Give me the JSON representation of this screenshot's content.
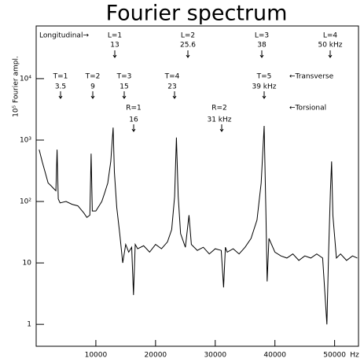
{
  "chart_data": {
    "type": "line",
    "title": "Fourier spectrum",
    "ylabel": "10⁵ Fourier ampl.",
    "xlabel": "Hz",
    "log_y": true,
    "xlim": [
      0,
      54000
    ],
    "ylim": [
      0.44,
      72000
    ],
    "xticks": [
      10000,
      20000,
      30000,
      40000,
      50000
    ],
    "yticks": [
      1,
      10,
      {
        "value": 100,
        "label": "10²"
      },
      {
        "value": 1000,
        "label": "10³"
      },
      {
        "value": 10000,
        "label": "10⁴"
      }
    ],
    "x": [
      500,
      1000,
      1500,
      2000,
      2500,
      3000,
      3300,
      3500,
      3700,
      4000,
      5000,
      6000,
      7000,
      8000,
      8500,
      9000,
      9200,
      9400,
      10000,
      11000,
      11500,
      12000,
      12500,
      12900,
      13100,
      13500,
      14000,
      14500,
      15000,
      15500,
      16000,
      16300,
      16600,
      17000,
      18000,
      19000,
      20000,
      21000,
      22000,
      22700,
      23200,
      23500,
      23800,
      24200,
      25000,
      25600,
      26000,
      27000,
      28000,
      29000,
      30000,
      31000,
      31400,
      31700,
      32000,
      33000,
      34000,
      35000,
      36000,
      37000,
      37700,
      38200,
      38500,
      38700,
      39000,
      40000,
      41000,
      42000,
      43000,
      44000,
      45000,
      46000,
      47000,
      48000,
      48700,
      49000,
      49300,
      49500,
      49700,
      50300,
      51000,
      52000,
      53000,
      53800
    ],
    "series": [
      {
        "color": "#000000",
        "values": [
          700,
          450,
          300,
          200,
          180,
          160,
          150,
          700,
          110,
          95,
          100,
          90,
          85,
          65,
          55,
          60,
          600,
          70,
          70,
          100,
          140,
          200,
          450,
          1600,
          300,
          80,
          30,
          10,
          20,
          15,
          18,
          3,
          20,
          17,
          19,
          15,
          20,
          17,
          22,
          35,
          120,
          1100,
          120,
          30,
          18,
          60,
          20,
          16,
          18,
          14,
          17,
          16,
          4,
          18,
          15,
          17,
          14,
          18,
          25,
          50,
          200,
          1700,
          60,
          5,
          25,
          15,
          13,
          12,
          14,
          11,
          13,
          12,
          14,
          12,
          1,
          15,
          150,
          450,
          60,
          12,
          14,
          11,
          13,
          12
        ]
      }
    ],
    "annotations": [
      "Longitudinal→",
      "L=1",
      "13",
      "L=2",
      "25.6",
      "L=3",
      "38",
      "L=4",
      "50 kHz",
      "T=1",
      "3.5",
      "T=2",
      "9",
      "T=3",
      "15",
      "T=4",
      "23",
      "T=5",
      "39 kHz",
      "←Transverse",
      "R=1",
      "16",
      "R=2",
      "31 kHz",
      "←Torsional"
    ]
  }
}
